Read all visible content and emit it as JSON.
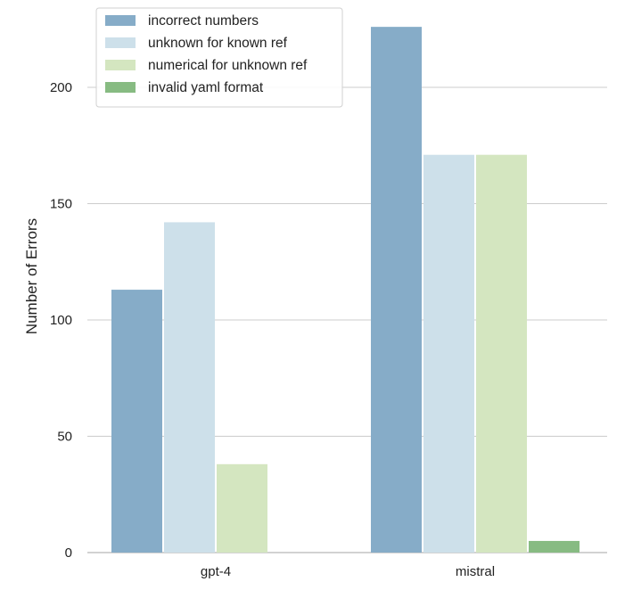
{
  "chart_data": {
    "type": "bar",
    "title": "",
    "xlabel": "",
    "ylabel": "Number of Errors",
    "categories": [
      "gpt-4",
      "mistral"
    ],
    "series": [
      {
        "name": "incorrect numbers",
        "values": [
          113,
          226
        ],
        "color": "#86acc8"
      },
      {
        "name": "unknown for known ref",
        "values": [
          142,
          171
        ],
        "color": "#cde0ea"
      },
      {
        "name": "numerical for unknown ref",
        "values": [
          38,
          171
        ],
        "color": "#d4e6c0"
      },
      {
        "name": "invalid yaml format",
        "values": [
          0,
          5
        ],
        "color": "#87bb82"
      }
    ],
    "ylim": [
      0,
      230
    ],
    "yticks": [
      0,
      50,
      100,
      150,
      200
    ],
    "grid": "horizontal",
    "legend_position": "top-left"
  }
}
